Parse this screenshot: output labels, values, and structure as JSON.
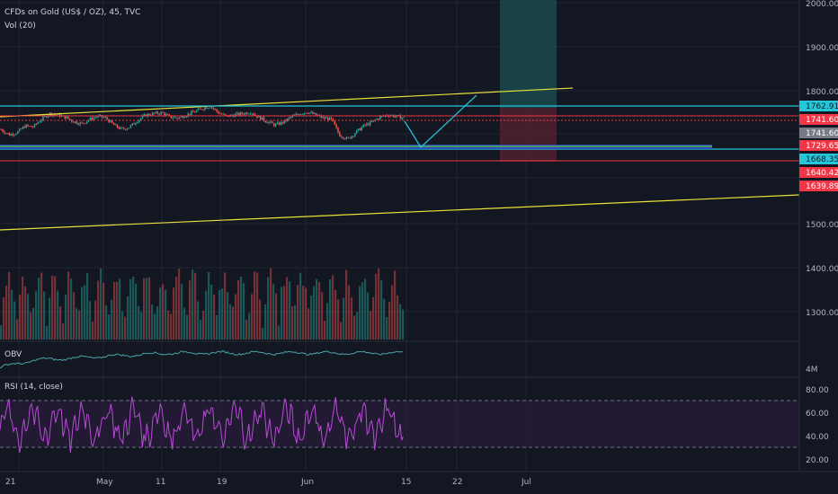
{
  "header": {
    "title": "CFDs on Gold (US$ / OZ), 45, TVC",
    "volume_label": "Vol (20)"
  },
  "colors": {
    "background": "#131722",
    "grid": "#1f2433",
    "candle_up": "#26a69a",
    "candle_down": "#ef5350",
    "trend": "#e8e13a",
    "cyan": "#26c6da",
    "red": "#f23645",
    "teal_zone": "#1b4a4c",
    "red_zone": "#4d2030",
    "obv_line": "#4aa3a8",
    "rsi_line": "#b84bd6",
    "rsi_band": "#2a1d3a",
    "blue_band": "#2f4fd6",
    "green_band": "#4caf50",
    "text": "#b2b5be"
  },
  "chart_data": {
    "type": "candlestick",
    "symbol": "CFDs on Gold (US$ / OZ)",
    "interval": "45",
    "exchange": "TVC",
    "price_axis": {
      "ticks": [
        "2000.00",
        "1900.00",
        "1800.00",
        "1500.00",
        "1400.00",
        "1300.00"
      ]
    },
    "price_tags": [
      {
        "label": "1762.91",
        "style": "cyan"
      },
      {
        "label": "1741.60",
        "style": "red"
      },
      {
        "label": "1741.60",
        "style": "grey"
      },
      {
        "label": "1729.65",
        "style": "red"
      },
      {
        "label": "1668.35",
        "style": "cyan"
      },
      {
        "label": "1640.42",
        "style": "red"
      },
      {
        "label": "1639.89",
        "style": "red"
      }
    ],
    "time_axis": {
      "ticks": [
        "21",
        "May",
        "11",
        "19",
        "Jun",
        "15",
        "22",
        "Jul"
      ]
    },
    "approx_price_series": [
      1712,
      1700,
      1705,
      1720,
      1718,
      1735,
      1748,
      1745,
      1740,
      1730,
      1725,
      1735,
      1742,
      1738,
      1722,
      1712,
      1718,
      1733,
      1745,
      1748,
      1750,
      1740,
      1738,
      1745,
      1752,
      1760,
      1765,
      1750,
      1742,
      1745,
      1748,
      1752,
      1740,
      1730,
      1722,
      1728,
      1740,
      1748,
      1752,
      1745,
      1738,
      1735,
      1700,
      1690,
      1705,
      1720,
      1728,
      1740,
      1745,
      1742,
      1738
    ],
    "obv": {
      "label": "OBV",
      "axis_tick": "4M"
    },
    "rsi": {
      "label": "RSI (14, close)",
      "axis_ticks": [
        "80.00",
        "60.00",
        "40.00",
        "20.00"
      ],
      "upper_band": 70,
      "lower_band": 30
    }
  }
}
